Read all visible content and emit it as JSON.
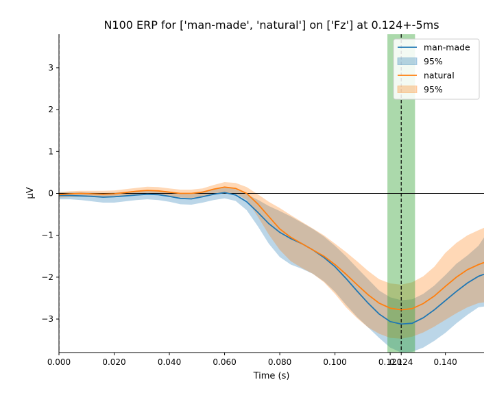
{
  "chart_data": {
    "type": "line",
    "title": "N100 ERP for ['man-made', 'natural'] on ['Fz'] at 0.124+-5ms",
    "xlabel": "Time (s)",
    "ylabel": "µV",
    "xlim": [
      0.0,
      0.154
    ],
    "ylim": [
      -3.8,
      3.8
    ],
    "x_ticks": [
      0.0,
      0.02,
      0.04,
      0.06,
      0.08,
      0.1,
      0.12,
      0.124,
      0.14
    ],
    "x_tick_labels": [
      "0.000",
      "0.020",
      "0.040",
      "0.060",
      "0.080",
      "0.100",
      "0.120",
      "0.124",
      "0.140"
    ],
    "y_ticks": [
      -3,
      -2,
      -1,
      0,
      1,
      2,
      3
    ],
    "y_tick_labels": [
      "−3",
      "−2",
      "−1",
      "0",
      "1",
      "2",
      "3"
    ],
    "legend_position": "top-right",
    "legend": [
      "man-made",
      "95%",
      "natural",
      "95%"
    ],
    "highlight_window": [
      0.119,
      0.129
    ],
    "vlines": [
      0.0,
      0.124
    ],
    "hline": 0,
    "grid": false,
    "x": [
      0.0,
      0.004,
      0.008,
      0.012,
      0.016,
      0.02,
      0.024,
      0.028,
      0.032,
      0.036,
      0.04,
      0.044,
      0.048,
      0.052,
      0.056,
      0.06,
      0.064,
      0.068,
      0.072,
      0.076,
      0.08,
      0.084,
      0.088,
      0.092,
      0.096,
      0.1,
      0.104,
      0.108,
      0.112,
      0.116,
      0.12,
      0.124,
      0.128,
      0.132,
      0.136,
      0.14,
      0.144,
      0.148,
      0.152,
      0.154
    ],
    "series": [
      {
        "name": "man-made",
        "color": "#1f77b4",
        "band_color": "#1f77b4",
        "values": [
          -0.05,
          -0.05,
          -0.06,
          -0.07,
          -0.09,
          -0.08,
          -0.06,
          -0.04,
          -0.02,
          -0.03,
          -0.07,
          -0.12,
          -0.13,
          -0.08,
          -0.02,
          0.02,
          -0.04,
          -0.2,
          -0.45,
          -0.72,
          -0.93,
          -1.08,
          -1.2,
          -1.35,
          -1.53,
          -1.75,
          -2.03,
          -2.33,
          -2.62,
          -2.88,
          -3.06,
          -3.12,
          -3.1,
          -2.97,
          -2.78,
          -2.56,
          -2.34,
          -2.14,
          -1.98,
          -1.93
        ],
        "lower": [
          -0.14,
          -0.14,
          -0.16,
          -0.19,
          -0.22,
          -0.22,
          -0.19,
          -0.16,
          -0.14,
          -0.16,
          -0.2,
          -0.26,
          -0.27,
          -0.22,
          -0.16,
          -0.12,
          -0.18,
          -0.4,
          -0.78,
          -1.2,
          -1.52,
          -1.7,
          -1.8,
          -1.92,
          -2.1,
          -2.35,
          -2.66,
          -2.95,
          -3.2,
          -3.45,
          -3.68,
          -3.8,
          -3.78,
          -3.68,
          -3.52,
          -3.33,
          -3.1,
          -2.9,
          -2.72,
          -2.7
        ],
        "upper": [
          0.03,
          0.03,
          0.03,
          0.02,
          0.01,
          0.02,
          0.04,
          0.06,
          0.08,
          0.07,
          0.04,
          -0.01,
          -0.02,
          0.05,
          0.1,
          0.14,
          0.1,
          -0.02,
          -0.15,
          -0.3,
          -0.42,
          -0.55,
          -0.7,
          -0.85,
          -1.03,
          -1.25,
          -1.5,
          -1.78,
          -2.05,
          -2.32,
          -2.48,
          -2.55,
          -2.53,
          -2.4,
          -2.2,
          -1.95,
          -1.68,
          -1.48,
          -1.25,
          -1.05
        ]
      },
      {
        "name": "natural",
        "color": "#ff7f0e",
        "band_color": "#ff7f0e",
        "values": [
          -0.03,
          -0.01,
          0.0,
          -0.01,
          -0.02,
          -0.01,
          0.02,
          0.05,
          0.07,
          0.06,
          0.03,
          0.0,
          0.0,
          0.03,
          0.1,
          0.15,
          0.12,
          0.0,
          -0.25,
          -0.55,
          -0.85,
          -1.05,
          -1.2,
          -1.35,
          -1.5,
          -1.7,
          -1.93,
          -2.18,
          -2.42,
          -2.62,
          -2.74,
          -2.78,
          -2.75,
          -2.63,
          -2.45,
          -2.22,
          -2.0,
          -1.82,
          -1.7,
          -1.65
        ],
        "lower": [
          -0.1,
          -0.09,
          -0.08,
          -0.09,
          -0.1,
          -0.09,
          -0.07,
          -0.04,
          -0.03,
          -0.04,
          -0.07,
          -0.1,
          -0.11,
          -0.08,
          -0.02,
          0.02,
          -0.01,
          -0.15,
          -0.55,
          -0.98,
          -1.35,
          -1.62,
          -1.78,
          -1.92,
          -2.12,
          -2.4,
          -2.72,
          -2.98,
          -3.2,
          -3.35,
          -3.45,
          -3.47,
          -3.42,
          -3.32,
          -3.18,
          -3.02,
          -2.86,
          -2.72,
          -2.62,
          -2.6
        ],
        "upper": [
          0.03,
          0.05,
          0.06,
          0.06,
          0.06,
          0.07,
          0.1,
          0.13,
          0.16,
          0.15,
          0.12,
          0.09,
          0.09,
          0.12,
          0.2,
          0.27,
          0.25,
          0.15,
          -0.02,
          -0.2,
          -0.35,
          -0.52,
          -0.68,
          -0.84,
          -1.0,
          -1.2,
          -1.4,
          -1.62,
          -1.85,
          -2.05,
          -2.15,
          -2.18,
          -2.12,
          -1.98,
          -1.75,
          -1.42,
          -1.18,
          -1.0,
          -0.88,
          -0.82
        ]
      }
    ]
  }
}
